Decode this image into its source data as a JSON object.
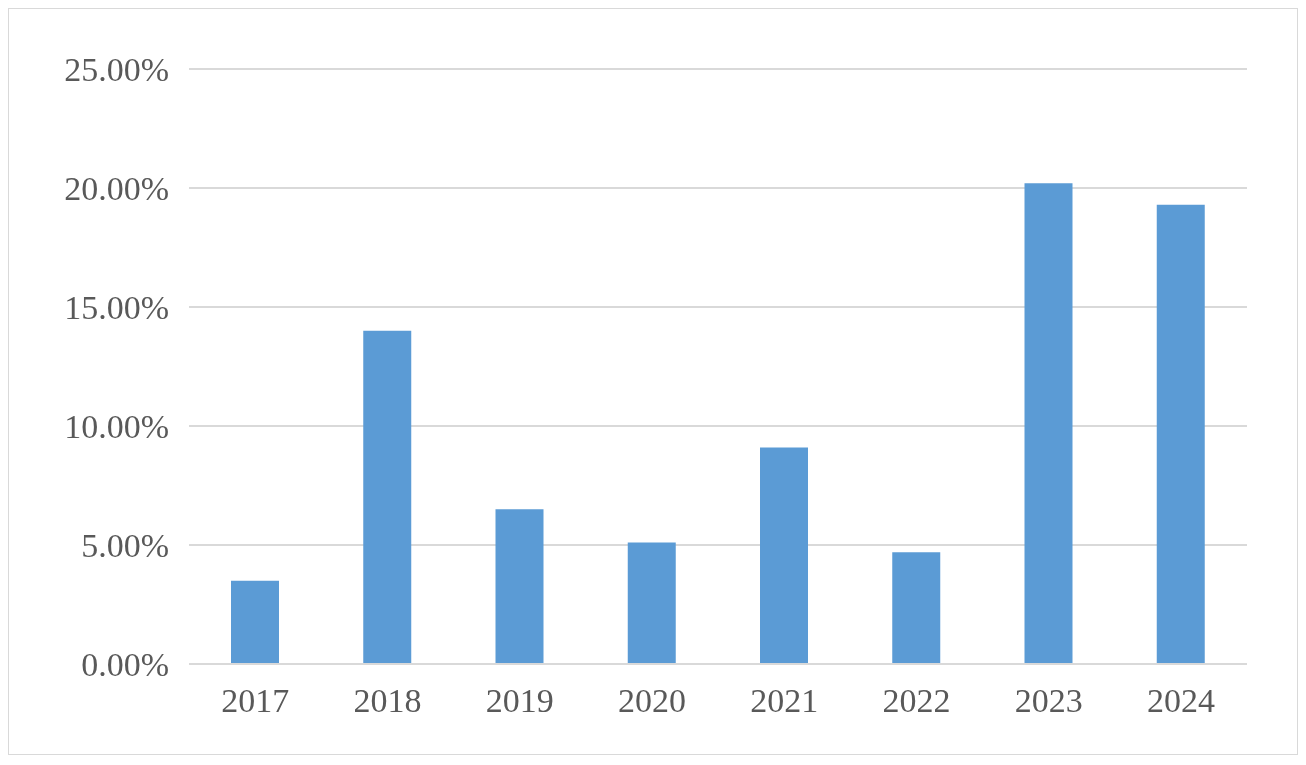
{
  "chart_data": {
    "type": "bar",
    "categories": [
      "2017",
      "2018",
      "2019",
      "2020",
      "2021",
      "2022",
      "2023",
      "2024"
    ],
    "values": [
      3.5,
      14.0,
      6.5,
      5.1,
      9.1,
      4.7,
      20.2,
      19.3
    ],
    "color": "#5b9bd5",
    "ylim": [
      0,
      25
    ],
    "yticks": [
      {
        "value": 0,
        "label": "0.00%"
      },
      {
        "value": 5,
        "label": "5.00%"
      },
      {
        "value": 10,
        "label": "10.00%"
      },
      {
        "value": 15,
        "label": "15.00%"
      },
      {
        "value": 20,
        "label": "20.00%"
      },
      {
        "value": 25,
        "label": "25.00%"
      }
    ],
    "grid": "y"
  }
}
